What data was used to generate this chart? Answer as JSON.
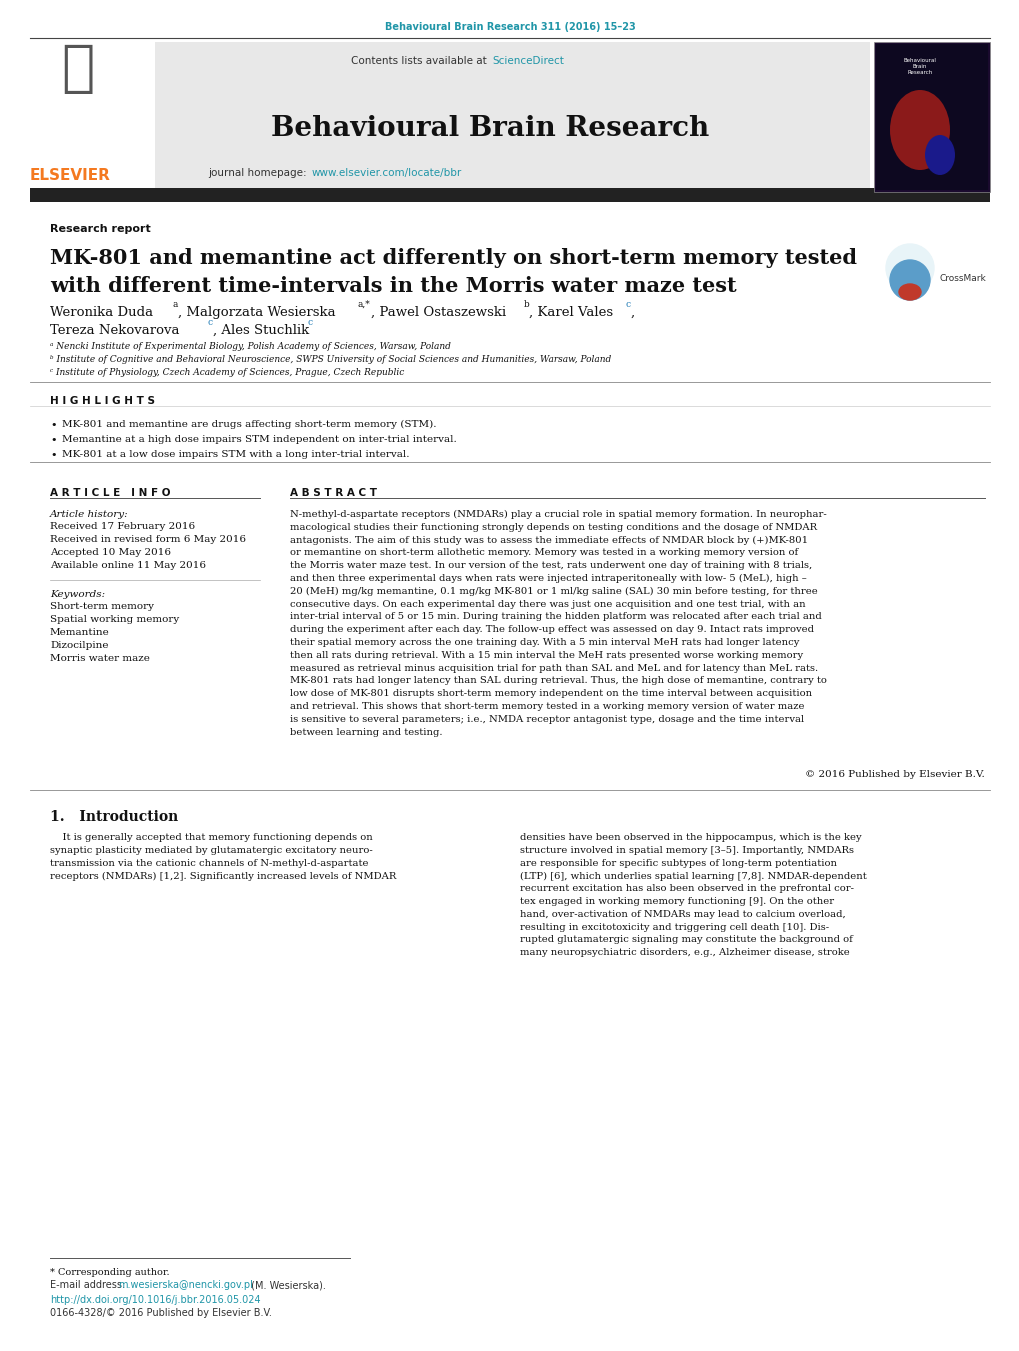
{
  "page_bg": "#ffffff",
  "journal_citation": "Behavioural Brain Research 311 (2016) 15–23",
  "citation_color": "#2196a8",
  "sciencedirect_color": "#2196a8",
  "journal_url_color": "#2196a8",
  "elsevier_color": "#f47920",
  "header_bg": "#e8e8e8",
  "article_type": "Research report",
  "title_line1": "MK-801 and memantine act differently on short-term memory tested",
  "title_line2": "with different time-intervals in the Morris water maze test",
  "affil_a": "ᵃ Nencki Institute of Experimental Biology, Polish Academy of Sciences, Warsaw, Poland",
  "affil_b": "ᵇ Institute of Cognitive and Behavioral Neuroscience, SWPS University of Social Sciences and Humanities, Warsaw, Poland",
  "affil_c": "ᶜ Institute of Physiology, Czech Academy of Sciences, Prague, Czech Republic",
  "highlights_title": "H I G H L I G H T S",
  "highlights": [
    "MK-801 and memantine are drugs affecting short-term memory (STM).",
    "Memantine at a high dose impairs STM independent on inter-trial interval.",
    "MK-801 at a low dose impairs STM with a long inter-trial interval."
  ],
  "article_info_title": "A R T I C L E   I N F O",
  "article_history_label": "Article history:",
  "article_history": [
    "Received 17 February 2016",
    "Received in revised form 6 May 2016",
    "Accepted 10 May 2016",
    "Available online 11 May 2016"
  ],
  "keywords_label": "Keywords:",
  "keywords": [
    "Short-term memory",
    "Spatial working memory",
    "Memantine",
    "Dizocilpine",
    "Morris water maze"
  ],
  "abstract_title": "A B S T R A C T",
  "abstract_lines": [
    "N-methyl-d-aspartate receptors (NMDARs) play a crucial role in spatial memory formation. In neurophar-",
    "macological studies their functioning strongly depends on testing conditions and the dosage of NMDAR",
    "antagonists. The aim of this study was to assess the immediate effects of NMDAR block by (+)MK-801",
    "or memantine on short-term allothetic memory. Memory was tested in a working memory version of",
    "the Morris water maze test. In our version of the test, rats underwent one day of training with 8 trials,",
    "and then three experimental days when rats were injected intraperitoneally with low- 5 (MeL), high –",
    "20 (MeH) mg/kg memantine, 0.1 mg/kg MK-801 or 1 ml/kg saline (SAL) 30 min before testing, for three",
    "consecutive days. On each experimental day there was just one acquisition and one test trial, with an",
    "inter-trial interval of 5 or 15 min. During training the hidden platform was relocated after each trial and",
    "during the experiment after each day. The follow-up effect was assessed on day 9. Intact rats improved",
    "their spatial memory across the one training day. With a 5 min interval MeH rats had longer latency",
    "then all rats during retrieval. With a 15 min interval the MeH rats presented worse working memory",
    "measured as retrieval minus acquisition trial for path than SAL and MeL and for latency than MeL rats.",
    "MK-801 rats had longer latency than SAL during retrieval. Thus, the high dose of memantine, contrary to",
    "low dose of MK-801 disrupts short-term memory independent on the time interval between acquisition",
    "and retrieval. This shows that short-term memory tested in a working memory version of water maze",
    "is sensitive to several parameters; i.e., NMDA receptor antagonist type, dosage and the time interval",
    "between learning and testing."
  ],
  "copyright_text": "© 2016 Published by Elsevier B.V.",
  "intro_title": "1.   Introduction",
  "intro_col1_lines": [
    "    It is generally accepted that memory functioning depends on",
    "synaptic plasticity mediated by glutamatergic excitatory neuro-",
    "transmission via the cationic channels of N-methyl-d-aspartate",
    "receptors (NMDARs) [1,2]. Significantly increased levels of NMDAR"
  ],
  "intro_col2_lines": [
    "densities have been observed in the hippocampus, which is the key",
    "structure involved in spatial memory [3–5]. Importantly, NMDARs",
    "are responsible for specific subtypes of long-term potentiation",
    "(LTP) [6], which underlies spatial learning [7,8]. NMDAR-dependent",
    "recurrent excitation has also been observed in the prefrontal cor-",
    "tex engaged in working memory functioning [9]. On the other",
    "hand, over-activation of NMDARs may lead to calcium overload,",
    "resulting in excitotoxicity and triggering cell death [10]. Dis-",
    "rupted glutamatergic signaling may constitute the background of",
    "many neuropsychiatric disorders, e.g., Alzheimer disease, stroke"
  ],
  "corresponding_author_text": "* Corresponding author.",
  "email_label": "E-mail address: ",
  "email_address": "m.wesierska@nencki.gov.pl",
  "email_name": " (M. Wesierska).",
  "doi_text": "http://dx.doi.org/10.1016/j.bbr.2016.05.024",
  "doi_color": "#2196a8",
  "issn_text": "0166-4328/© 2016 Published by Elsevier B.V."
}
